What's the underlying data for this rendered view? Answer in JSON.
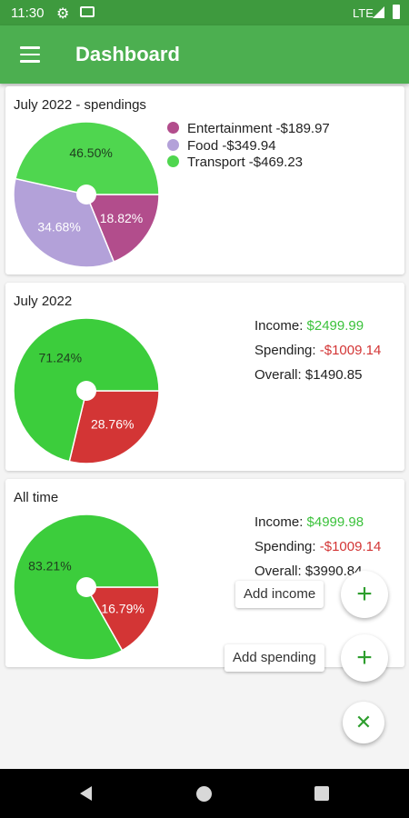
{
  "status_bar": {
    "time": "11:30",
    "network": "LTE",
    "icons": [
      "gear-icon",
      "image-icon",
      "signal-icon",
      "battery-icon"
    ]
  },
  "app_bar": {
    "title": "Dashboard",
    "menu_icon": "hamburger-menu-icon"
  },
  "colors": {
    "primary": "#4caf50",
    "primary_dark": "#3e9a3e",
    "entertainment": "#b24d8c",
    "food": "#b3a1d9",
    "transport": "#4fd64f",
    "income": "#3ccd3c",
    "spending": "#d33535"
  },
  "cards": [
    {
      "title": "July 2022 - spendings",
      "legend": [
        {
          "label": "Entertainment -$189.97",
          "color": "#b24d8c"
        },
        {
          "label": "Food -$349.94",
          "color": "#b3a1d9"
        },
        {
          "label": "Transport -$469.23",
          "color": "#4fd64f"
        }
      ],
      "chart_data": {
        "type": "pie",
        "slices": [
          {
            "label": "Entertainment",
            "value": 18.82,
            "text": "18.82%",
            "color": "#b24d8c"
          },
          {
            "label": "Food",
            "value": 34.68,
            "text": "34.68%",
            "color": "#b3a1d9"
          },
          {
            "label": "Transport",
            "value": 46.5,
            "text": "46.50%",
            "color": "#4fd64f"
          }
        ]
      }
    },
    {
      "title": "July 2022",
      "income_label": "Income:",
      "income_value": "$2499.99",
      "spending_label": "Spending:",
      "spending_value": "-$1009.14",
      "overall_label": "Overall:",
      "overall_value": "$1490.85",
      "chart_data": {
        "type": "pie",
        "slices": [
          {
            "label": "Spending",
            "value": 28.76,
            "text": "28.76%",
            "color": "#d33535"
          },
          {
            "label": "Income",
            "value": 71.24,
            "text": "71.24%",
            "color": "#3ccd3c"
          }
        ]
      }
    },
    {
      "title": "All time",
      "income_label": "Income:",
      "income_value": "$4999.98",
      "spending_label": "Spending:",
      "spending_value": "-$1009.14",
      "overall_label": "Overall:",
      "overall_value": "$3990.84",
      "chart_data": {
        "type": "pie",
        "slices": [
          {
            "label": "Spending",
            "value": 16.79,
            "text": "16.79%",
            "color": "#d33535"
          },
          {
            "label": "Income",
            "value": 83.21,
            "text": "83.21%",
            "color": "#3ccd3c"
          }
        ]
      }
    }
  ],
  "fab_menu": {
    "add_income_label": "Add income",
    "add_spending_label": "Add spending",
    "add_icon": "+",
    "close_icon": "✕"
  },
  "nav_bar": {
    "icons": [
      "back-icon",
      "home-icon",
      "recents-icon"
    ]
  }
}
